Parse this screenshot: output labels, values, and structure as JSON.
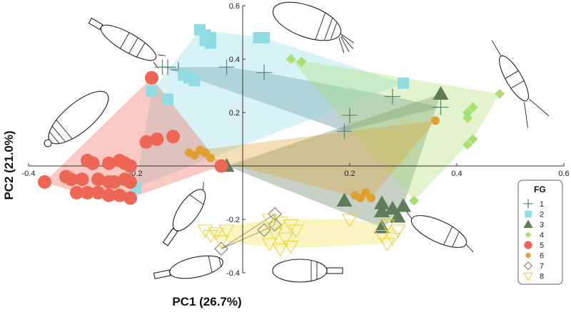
{
  "chart_data": {
    "type": "scatter",
    "xlabel": "PC1 (26.7%)",
    "ylabel": "PC2 (21.0%)",
    "xlim": [
      -0.4,
      0.6
    ],
    "ylim": [
      -0.4,
      0.6
    ],
    "x_ticks": [
      -0.4,
      -0.2,
      0.2,
      0.4,
      0.6
    ],
    "y_ticks": [
      -0.4,
      -0.2,
      0.2,
      0.4,
      0.6
    ],
    "tick_labels_x": [
      "-0.4",
      "-0.2",
      "0.2",
      "0.4",
      "0.6"
    ],
    "tick_labels_y": [
      "-0.4",
      "-0.2",
      "0.2",
      "0.4",
      "0.6"
    ],
    "grid": false,
    "legend": {
      "title": "FG",
      "placement": "right"
    },
    "series": [
      {
        "name": "1",
        "marker": "plus",
        "color": "#5b8a7a",
        "fill": "#4e7d8c",
        "points": [
          [
            -0.15,
            0.37
          ],
          [
            -0.14,
            0.37
          ],
          [
            -0.12,
            0.36
          ],
          [
            -0.03,
            0.37
          ],
          [
            0.04,
            0.35
          ],
          [
            0.2,
            0.19
          ],
          [
            0.19,
            0.13
          ],
          [
            0.28,
            0.26
          ],
          [
            0.37,
            0.22
          ]
        ]
      },
      {
        "name": "2",
        "marker": "square",
        "color": "#8fdde3",
        "fill": "#8fdde3",
        "points": [
          [
            -0.08,
            0.51
          ],
          [
            -0.07,
            0.49
          ],
          [
            -0.06,
            0.48
          ],
          [
            -0.07,
            0.47
          ],
          [
            -0.06,
            0.46
          ],
          [
            0.03,
            0.48
          ],
          [
            0.04,
            0.48
          ],
          [
            -0.17,
            0.28
          ],
          [
            -0.14,
            0.25
          ],
          [
            -0.1,
            0.33
          ],
          [
            -0.09,
            0.32
          ],
          [
            -0.11,
            0.34
          ],
          [
            -0.2,
            -0.08
          ],
          [
            0.3,
            0.31
          ]
        ]
      },
      {
        "name": "3",
        "marker": "triangle",
        "color": "#5e7b5a",
        "fill": "#5e7b5a",
        "points": [
          [
            -0.03,
            0.0
          ],
          [
            0.37,
            0.27
          ],
          [
            0.19,
            -0.13
          ],
          [
            0.26,
            -0.14
          ],
          [
            0.26,
            -0.17
          ],
          [
            0.28,
            -0.16
          ],
          [
            0.3,
            -0.15
          ],
          [
            0.29,
            -0.19
          ],
          [
            0.26,
            -0.23
          ]
        ]
      },
      {
        "name": "4",
        "marker": "diamond",
        "color": "#a8e070",
        "fill": "#a8e070",
        "points": [
          [
            0.09,
            0.4
          ],
          [
            0.11,
            0.39
          ],
          [
            0.48,
            0.27
          ],
          [
            0.43,
            0.22
          ],
          [
            0.42,
            0.2
          ],
          [
            0.42,
            0.18
          ],
          [
            0.43,
            0.1
          ],
          [
            0.42,
            0.08
          ],
          [
            0.32,
            -0.13
          ]
        ]
      },
      {
        "name": "5",
        "marker": "circle",
        "color": "#ee6655",
        "fill": "#ee6655",
        "points": [
          [
            -0.17,
            0.33
          ],
          [
            -0.37,
            -0.06
          ],
          [
            -0.29,
            0.02
          ],
          [
            -0.28,
            0.01
          ],
          [
            -0.25,
            0.01
          ],
          [
            -0.23,
            0.02
          ],
          [
            -0.22,
            0.01
          ],
          [
            -0.21,
            0.0
          ],
          [
            -0.33,
            -0.04
          ],
          [
            -0.32,
            -0.05
          ],
          [
            -0.3,
            -0.05
          ],
          [
            -0.27,
            -0.05
          ],
          [
            -0.25,
            -0.06
          ],
          [
            -0.24,
            -0.06
          ],
          [
            -0.22,
            -0.05
          ],
          [
            -0.21,
            -0.06
          ],
          [
            -0.31,
            -0.1
          ],
          [
            -0.29,
            -0.1
          ],
          [
            -0.27,
            -0.1
          ],
          [
            -0.25,
            -0.11
          ],
          [
            -0.23,
            -0.11
          ],
          [
            -0.21,
            -0.12
          ],
          [
            -0.18,
            0.09
          ],
          [
            -0.16,
            0.1
          ],
          [
            -0.13,
            0.11
          ],
          [
            -0.04,
            0.0
          ]
        ]
      },
      {
        "name": "6",
        "marker": "small-circle",
        "color": "#e0a030",
        "fill": "#e0a030",
        "points": [
          [
            -0.1,
            0.05
          ],
          [
            -0.09,
            0.04
          ],
          [
            -0.08,
            0.06
          ],
          [
            -0.07,
            0.05
          ],
          [
            -0.06,
            0.03
          ],
          [
            0.36,
            0.17
          ],
          [
            0.21,
            -0.11
          ],
          [
            0.22,
            -0.12
          ],
          [
            0.23,
            -0.1
          ],
          [
            0.24,
            -0.12
          ]
        ]
      },
      {
        "name": "7",
        "marker": "open-diamond",
        "color": "#8a7a66",
        "fill": "none",
        "points": [
          [
            -0.04,
            -0.31
          ],
          [
            0.06,
            -0.18
          ],
          [
            0.06,
            -0.22
          ],
          [
            0.04,
            -0.24
          ]
        ]
      },
      {
        "name": "8",
        "marker": "open-triangle",
        "color": "#e8d640",
        "fill": "#f0e050",
        "points": [
          [
            0.05,
            -0.2
          ],
          [
            0.07,
            -0.21
          ],
          [
            0.09,
            -0.22
          ],
          [
            0.1,
            -0.24
          ],
          [
            0.06,
            -0.25
          ],
          [
            0.08,
            -0.27
          ],
          [
            0.05,
            -0.29
          ],
          [
            0.07,
            -0.31
          ],
          [
            0.09,
            -0.3
          ],
          [
            -0.07,
            -0.24
          ],
          [
            -0.05,
            -0.25
          ],
          [
            -0.03,
            -0.24
          ],
          [
            -0.06,
            -0.26
          ],
          [
            -0.04,
            -0.28
          ],
          [
            0.2,
            -0.2
          ],
          [
            0.26,
            -0.26
          ],
          [
            0.28,
            -0.27
          ],
          [
            0.29,
            -0.24
          ],
          [
            0.27,
            -0.22
          ],
          [
            0.27,
            -0.29
          ]
        ]
      }
    ]
  }
}
